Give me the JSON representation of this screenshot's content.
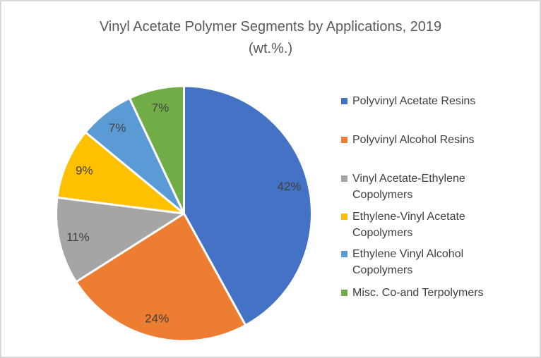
{
  "title": {
    "line1": "Vinyl Acetate Polymer Segments by Applications, 2019",
    "line2": "(wt.%.)"
  },
  "chart_data": {
    "type": "pie",
    "title": "Vinyl Acetate Polymer Segments by Applications, 2019 (wt.%.)",
    "unit": "wt.%",
    "start_angle_deg": 0,
    "direction": "clockwise",
    "legend_position": "right",
    "segments": [
      {
        "label": "Polyvinyl Acetate Resins",
        "value": 42,
        "data_label": "42%",
        "color": "#4472C4",
        "legend_lines": [
          "Polyvinyl Acetate Resins"
        ]
      },
      {
        "label": "Polyvinyl Alcohol Resins",
        "value": 24,
        "data_label": "24%",
        "color": "#ED7D31",
        "legend_lines": [
          "Polyvinyl Alcohol Resins"
        ]
      },
      {
        "label": "Vinyl Acetate-Ethylene Copolymers",
        "value": 11,
        "data_label": "11%",
        "color": "#A5A5A5",
        "legend_lines": [
          "Vinyl Acetate-Ethylene",
          "Copolymers"
        ]
      },
      {
        "label": "Ethylene-Vinyl Acetate Copolymers",
        "value": 9,
        "data_label": "9%",
        "color": "#FFC000",
        "legend_lines": [
          "Ethylene-Vinyl Acetate",
          "Copolymers"
        ]
      },
      {
        "label": "Ethylene Vinyl Alcohol Copolymers",
        "value": 7,
        "data_label": "7%",
        "color": "#5B9BD5",
        "legend_lines": [
          "Ethylene Vinyl Alcohol",
          "Copolymers"
        ]
      },
      {
        "label": "Misc. Co-and Terpolymers",
        "value": 7,
        "data_label": "7%",
        "color": "#70AD47",
        "legend_lines": [
          "Misc. Co-and Terpolymers"
        ]
      }
    ],
    "colors": {
      "data_label_text": "#404040",
      "title_text": "#595959",
      "frame_border": "#D9D9D9",
      "background": "#FFFFFF",
      "slice_separator": "#FFFFFF"
    }
  }
}
